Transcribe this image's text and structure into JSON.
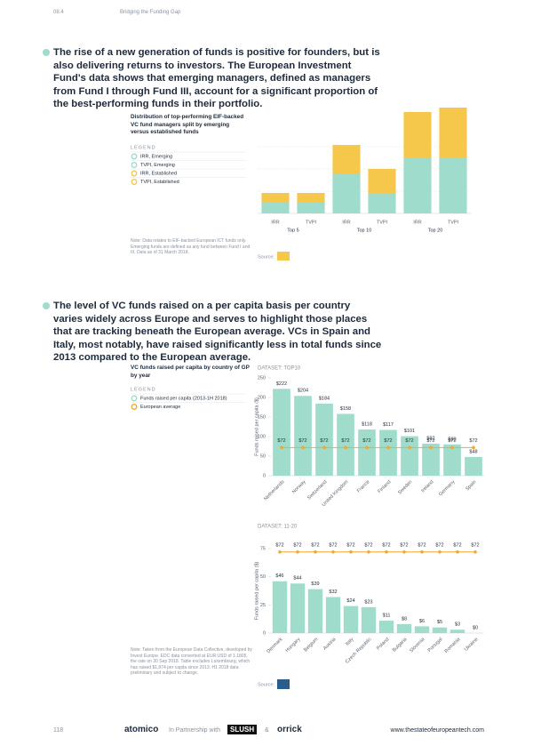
{
  "header": {
    "section": "08.4",
    "title": "Bridging the Funding Gap"
  },
  "paragraphs": [
    "The rise of a new generation of funds is positive for founders, but is also delivering returns to investors. The European Investment Fund's data shows that emerging managers, defined as managers from Fund I through Fund III, account for a significant proportion of the best-performing funds in their portfolio.",
    "The level of VC funds raised on a per capita basis per country varies widely across Europe and serves to highlight those places that are tracking beneath the European average. VCs in Spain and Italy, most notably, have raised significantly less in total funds since 2013 compared to the European average."
  ],
  "chart_data": [
    {
      "type": "bar",
      "stacked": true,
      "title": "Distribution of top-performing EIF-backed VC fund managers split by emerging versus established funds",
      "legend_title": "LEGEND",
      "categories": [
        "IRR",
        "TVPI",
        "IRR",
        "TVPI",
        "IRR",
        "TVPI"
      ],
      "groups": [
        "Top 5",
        "Top 10",
        "Top 20"
      ],
      "ylim": [
        0,
        120
      ],
      "series": [
        {
          "name": "IRR, Emerging",
          "color": "#9fdccb",
          "values": [
            12,
            null,
            44,
            null,
            62,
            null
          ]
        },
        {
          "name": "TVPI, Emerging",
          "color": "#9fdccb",
          "values": [
            null,
            12,
            null,
            22,
            null,
            63
          ]
        },
        {
          "name": "IRR, Established",
          "color": "#f5c84c",
          "values": [
            11,
            null,
            33,
            null,
            52,
            null
          ]
        },
        {
          "name": "TVPI, Established",
          "color": "#f5c84c",
          "values": [
            null,
            11,
            null,
            28,
            null,
            56
          ]
        }
      ]
    },
    {
      "type": "bar",
      "title": "VC funds raised per capita by country of GP by year",
      "dataset_label": "DATASET: TOP10",
      "legend_title": "LEGEND",
      "y_label": "Funds raised per capita ($)",
      "categories": [
        "Netherlands",
        "Norway",
        "Switzerland",
        "United Kingdom",
        "France",
        "Finland",
        "Sweden",
        "Ireland",
        "Germany",
        "Spain"
      ],
      "ylim": [
        0,
        250
      ],
      "yticks": [
        0,
        50,
        100,
        150,
        200,
        250
      ],
      "series": [
        {
          "name": "Funds raised per capita (2013-1H 2018)",
          "color": "#9fdccb",
          "values": [
            222,
            204,
            184,
            158,
            118,
            117,
            101,
            82,
            80,
            48
          ],
          "value_labels": [
            "$222",
            "$204",
            "$184",
            "$158",
            "$118",
            "$117",
            "$101",
            "$82",
            "$80",
            "$48"
          ]
        },
        {
          "name": "European average",
          "color": "#f0a830",
          "type": "line",
          "values": [
            72,
            72,
            72,
            72,
            72,
            72,
            72,
            72,
            72,
            72
          ],
          "value_labels": [
            "$72",
            "$72",
            "$72",
            "$72",
            "$72",
            "$72",
            "$72",
            "$72",
            "$72",
            "$72"
          ]
        }
      ]
    },
    {
      "type": "bar",
      "title": "DATASET: 11-20",
      "y_label": "Funds raised per capita ($)",
      "categories": [
        "Denmark",
        "Hungary",
        "Belgium",
        "Austria",
        "Italy",
        "Czech Republic",
        "Poland",
        "Bulgaria",
        "Slovenia",
        "Portugal",
        "Romania",
        "Ukraine"
      ],
      "ylim": [
        0,
        75
      ],
      "yticks": [
        0,
        25,
        50,
        75
      ],
      "series": [
        {
          "color": "#9fdccb",
          "values": [
            46,
            44,
            39,
            32,
            24,
            23,
            11,
            8,
            6,
            5,
            3,
            0
          ],
          "value_labels": [
            "$46",
            "$44",
            "$39",
            "$32",
            "$24",
            "$23",
            "$11",
            "$8",
            "$6",
            "$5",
            "$3",
            "$0"
          ]
        },
        {
          "color": "#f0a830",
          "type": "line",
          "values": [
            72,
            72,
            72,
            72,
            72,
            72,
            72,
            72,
            72,
            72,
            72,
            72
          ],
          "value_labels": [
            "$72",
            "$72",
            "$72",
            "$72",
            "$72",
            "$72",
            "$72",
            "$72",
            "$72",
            "$72",
            "$72",
            "$72"
          ]
        }
      ]
    }
  ],
  "notes": [
    "Note: Data relates to EIF-backed European ICT funds only. Emerging funds are defined as any fund between Fund I and III. Data as of 31 March 2018.",
    "Note: Taken from the European Data Collective, developed by Invest Europe. EDC data converted at EUR:USD of 1.1805, the rate on 30 Sep 2018. Table excludes Luxembourg, which has raised $1,874 per capita since 2013. H1 2018 data preliminary and subject to change."
  ],
  "sources": [
    "Source:",
    "Source:"
  ],
  "footer": {
    "page": "118",
    "logo1": "atomico",
    "partnership": "In Partnership with",
    "logo2": "SLUSH",
    "amp": "&",
    "logo3": "orrick",
    "url": "www.thestateofeuropeantech.com"
  }
}
